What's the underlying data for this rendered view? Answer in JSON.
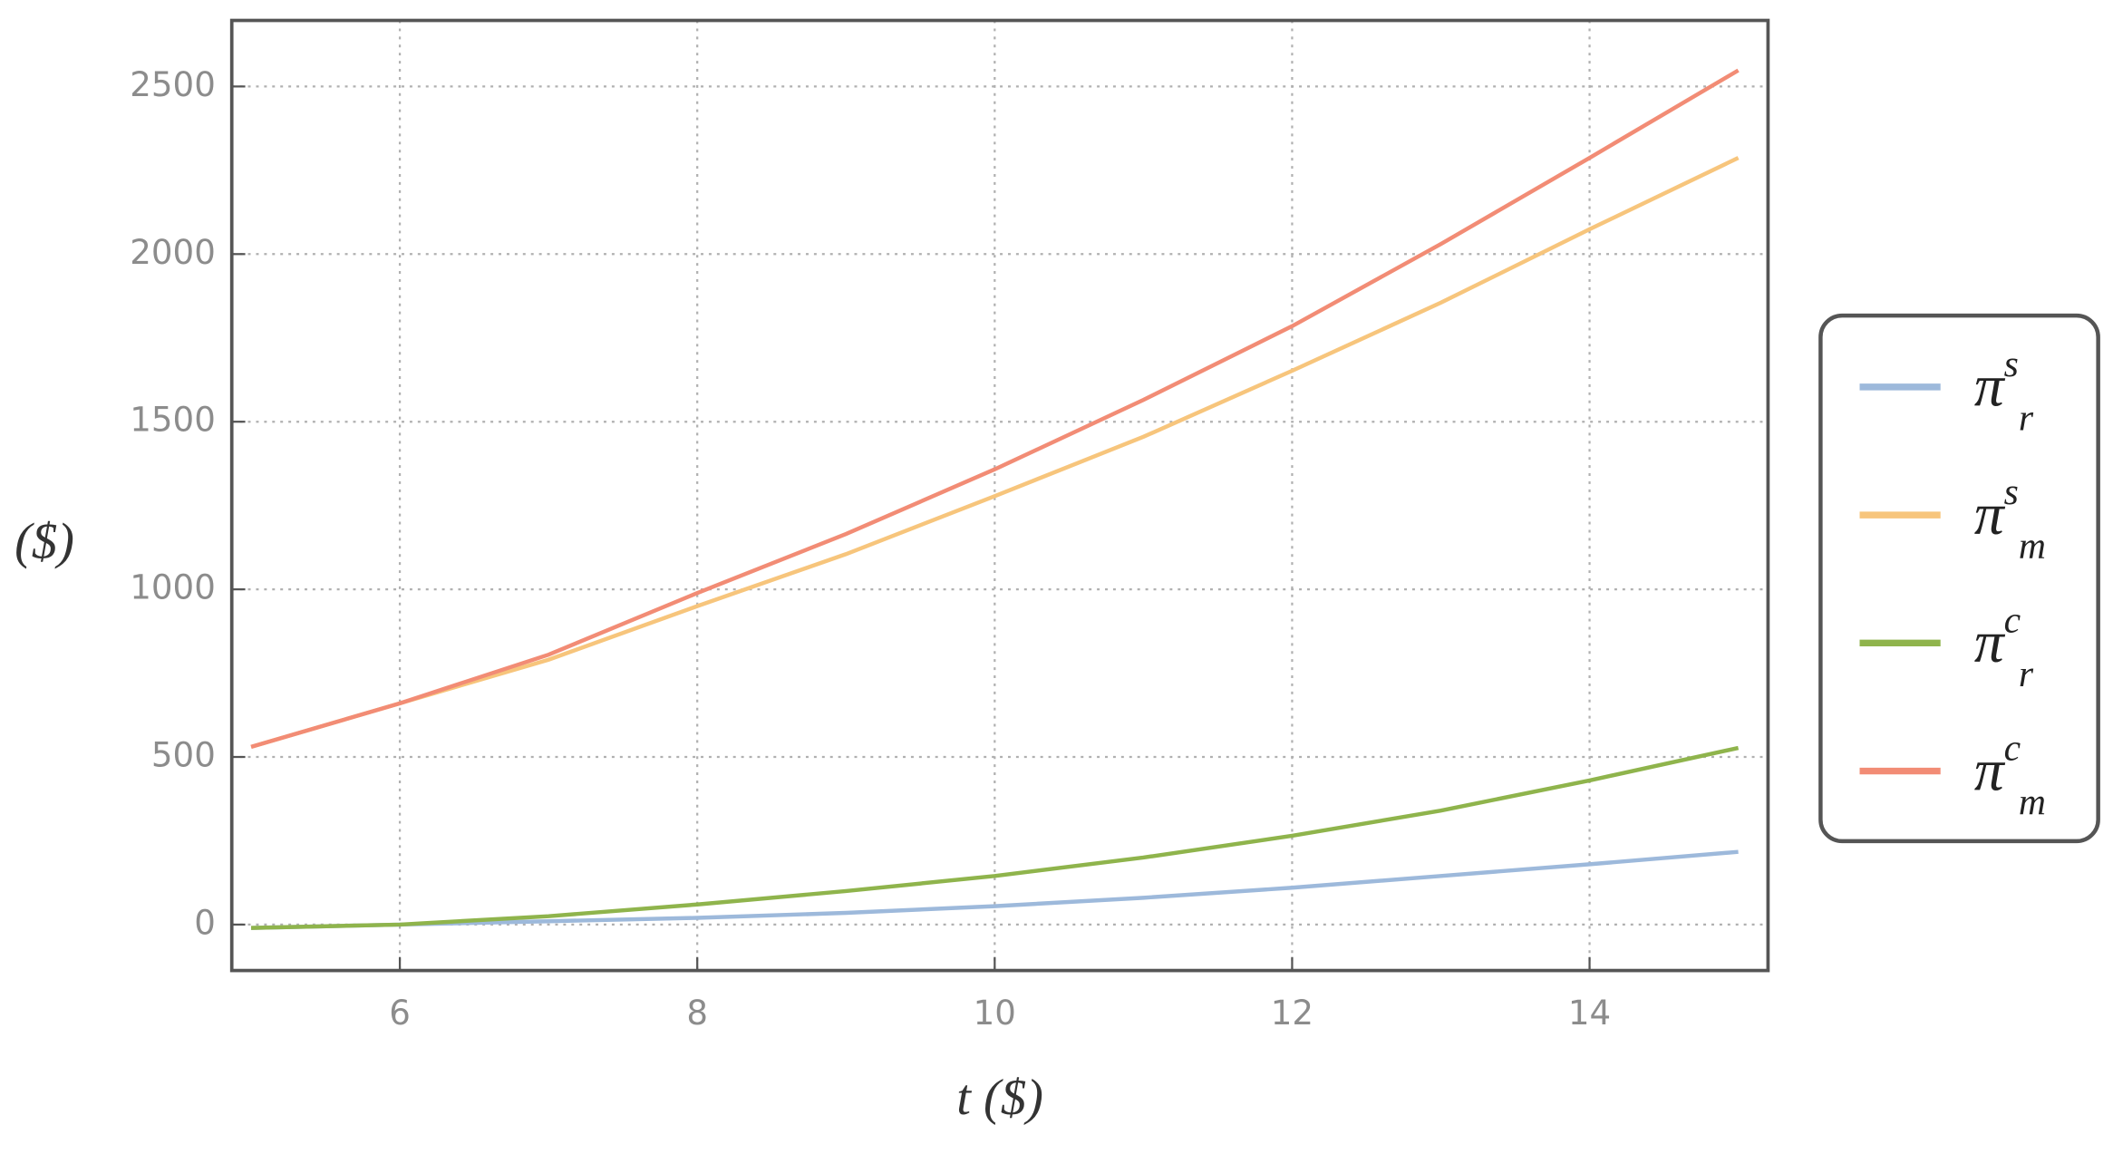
{
  "chart_data": {
    "type": "line",
    "x_label": "t ($)",
    "y_label": "($)",
    "x": [
      5,
      6,
      7,
      8,
      9,
      10,
      11,
      12,
      13,
      14,
      15
    ],
    "series": [
      {
        "name": "π",
        "sub": "r",
        "sup": "s",
        "color": "#9db9db",
        "values": [
          -10,
          0,
          10,
          20,
          35,
          55,
          80,
          110,
          145,
          180,
          217
        ]
      },
      {
        "name": "π",
        "sub": "m",
        "sup": "s",
        "color": "#f7c57c",
        "values": [
          530,
          660,
          790,
          950,
          1105,
          1278,
          1455,
          1652,
          1855,
          2074,
          2287
        ]
      },
      {
        "name": "π",
        "sub": "r",
        "sup": "c",
        "color": "#8fb44c",
        "values": [
          -10,
          0,
          25,
          60,
          100,
          145,
          200,
          265,
          340,
          430,
          527
        ]
      },
      {
        "name": "π",
        "sub": "m",
        "sup": "c",
        "color": "#f28c75",
        "values": [
          530,
          660,
          805,
          989,
          1165,
          1358,
          1565,
          1785,
          2030,
          2287,
          2548
        ]
      }
    ],
    "xlim": [
      4.87,
      15.2
    ],
    "ylim": [
      -137,
      2697
    ],
    "xticks": [
      6,
      8,
      10,
      12,
      14
    ],
    "yticks": [
      0,
      500,
      1000,
      1500,
      2000,
      2500
    ],
    "grid": true,
    "legend": "right"
  }
}
